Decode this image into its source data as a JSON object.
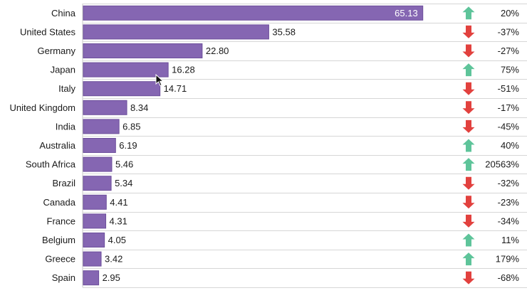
{
  "chart_data": {
    "type": "bar",
    "orientation": "horizontal",
    "title": "",
    "xlabel": "",
    "ylabel": "",
    "xlim": [
      0,
      72
    ],
    "grid": "horizontal row dividers",
    "bar_color": "#8566b2",
    "up_color": "#5ec49a",
    "down_color": "#e2413e",
    "categories": [
      "China",
      "United States",
      "Germany",
      "Japan",
      "Italy",
      "United Kingdom",
      "India",
      "Australia",
      "South Africa",
      "Brazil",
      "Canada",
      "France",
      "Belgium",
      "Greece",
      "Spain"
    ],
    "values": [
      65.13,
      35.58,
      22.8,
      16.28,
      14.71,
      8.34,
      6.85,
      6.19,
      5.46,
      5.34,
      4.41,
      4.31,
      4.05,
      3.42,
      2.95
    ],
    "value_labels": [
      "65.13",
      "35.58",
      "22.80",
      "16.28",
      "14.71",
      "8.34",
      "6.85",
      "6.19",
      "5.46",
      "5.34",
      "4.41",
      "4.31",
      "4.05",
      "3.42",
      "2.95"
    ],
    "changes": [
      20,
      -37,
      -27,
      75,
      -51,
      -17,
      -45,
      40,
      20563,
      -32,
      -23,
      -34,
      11,
      179,
      -68
    ],
    "change_labels": [
      "20%",
      "-37%",
      "-27%",
      "75%",
      "-51%",
      "-17%",
      "-45%",
      "40%",
      "20563%",
      "-32%",
      "-23%",
      "-34%",
      "11%",
      "179%",
      "-68%"
    ]
  }
}
